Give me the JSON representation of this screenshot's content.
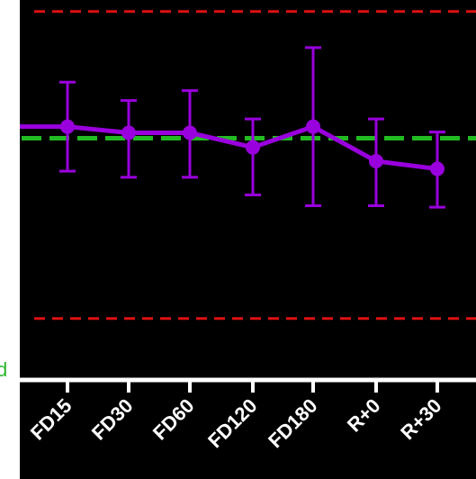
{
  "chart_data": {
    "type": "line",
    "title": "",
    "xlabel": "",
    "ylabel": "",
    "categories": [
      "FD15",
      "FD30",
      "FD60",
      "FD120",
      "FD180",
      "R+0",
      "R+30"
    ],
    "series": [
      {
        "values": [
          1.0,
          0.92,
          0.92,
          0.73,
          1.0,
          0.55,
          0.45
        ],
        "error_low": [
          0.58,
          0.58,
          0.58,
          0.62,
          1.03,
          0.58,
          0.5
        ],
        "error_high": [
          0.58,
          0.42,
          0.55,
          0.37,
          1.03,
          0.55,
          0.48
        ],
        "color": "#9900dd"
      }
    ],
    "reference_lines": [
      {
        "value": 0.85,
        "style": "dashed",
        "color": "#22bb22"
      },
      {
        "value": 2.5,
        "style": "dashed",
        "color": "#dd1111"
      },
      {
        "value": -1.5,
        "style": "dashed",
        "color": "#dd1111"
      }
    ],
    "ylim": [
      -2.3,
      2.65
    ],
    "grid": false,
    "partial_axis_label": "d",
    "colors": {
      "background": "#000000",
      "axis": "#ffffff",
      "series": "#9900dd",
      "reference": "#22bb22",
      "limits": "#dd1111",
      "label": "#2bb52b"
    }
  }
}
